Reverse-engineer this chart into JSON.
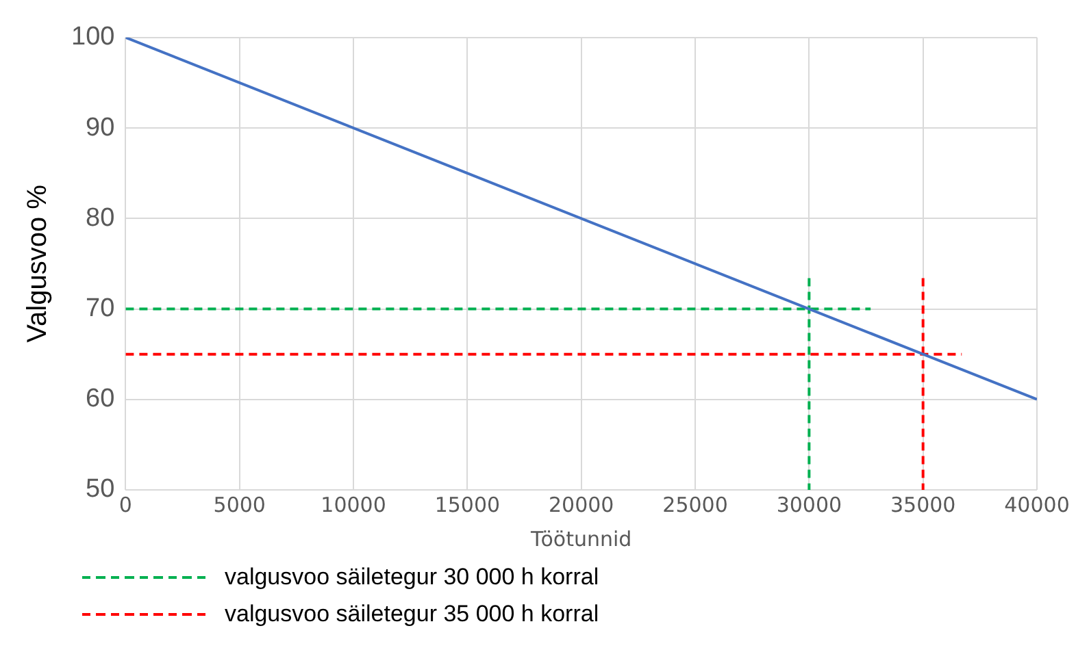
{
  "chart_data": {
    "type": "line",
    "xlabel": "Töötunnid",
    "ylabel": "Valgusvoo %",
    "xlim": [
      0,
      40000
    ],
    "xticks": [
      0,
      5000,
      10000,
      15000,
      20000,
      25000,
      30000,
      35000,
      40000
    ],
    "ylim": [
      50,
      100
    ],
    "yticks": [
      50,
      60,
      70,
      80,
      90,
      100
    ],
    "grid": true,
    "legend": "bottom",
    "marker": "none",
    "series": [
      {
        "color": "#4472c4",
        "x": [
          0,
          40000
        ],
        "values": [
          100,
          60
        ],
        "line_style": "solid"
      },
      {
        "name": "valgusvoo säiletegur 30 000 h korral",
        "color": "#00b050",
        "x": [
          0,
          32700
        ],
        "values": [
          70,
          70
        ],
        "line_style": "dashed"
      },
      {
        "color": "#00b050",
        "x": [
          30000,
          30000
        ],
        "values": [
          73.4,
          50
        ],
        "line_style": "dashed"
      },
      {
        "name": "valgusvoo säiletegur 35 000 h korral",
        "color": "#ff0000",
        "x": [
          0,
          36700
        ],
        "values": [
          65,
          65
        ],
        "line_style": "dashed"
      },
      {
        "color": "#ff0000",
        "x": [
          35000,
          35000
        ],
        "values": [
          73.4,
          50
        ],
        "line_style": "dashed"
      }
    ]
  }
}
